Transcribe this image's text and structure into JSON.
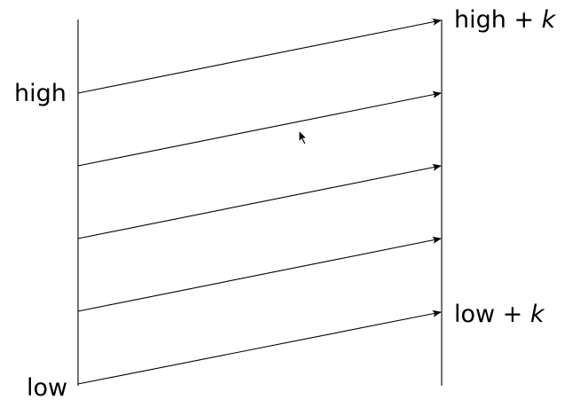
{
  "diagram": {
    "left_top_label": "high",
    "left_bottom_label": "low",
    "right_top_label": {
      "text": "high + ",
      "variable": "k"
    },
    "right_bottom_label": {
      "text": "low + ",
      "variable": "k"
    },
    "arrow_count": 5,
    "cursor_visible": true
  }
}
